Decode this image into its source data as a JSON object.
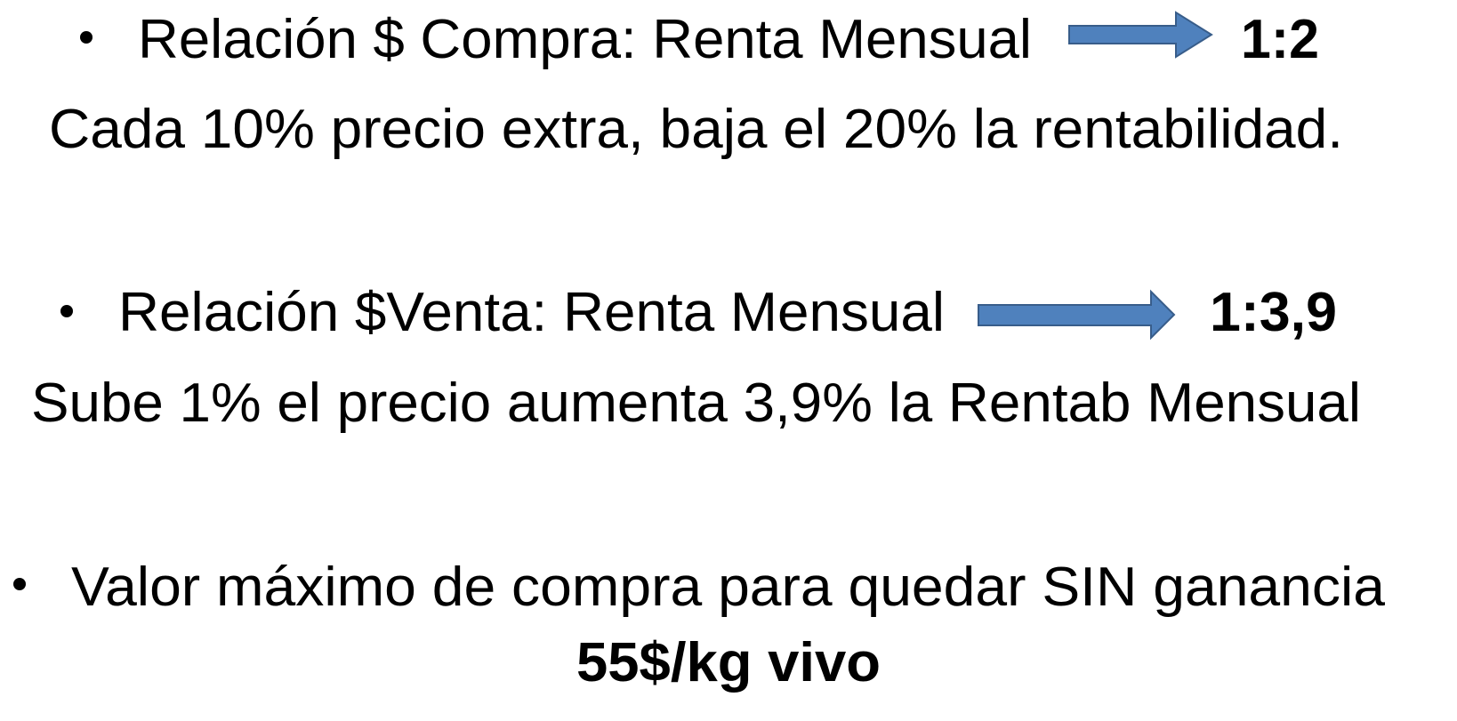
{
  "items": [
    {
      "text": "Relación $ Compra: Renta Mensual",
      "ratio": "1:2",
      "note": "Cada 10% precio extra, baja el 20% la rentabilidad."
    },
    {
      "text": "Relación $Venta: Renta Mensual",
      "ratio": "1:3,9",
      "note": "Sube 1% el precio aumenta 3,9% la Rentab Mensual"
    },
    {
      "text": "Valor máximo de compra para quedar SIN ganancia",
      "value": "55$/kg vivo"
    }
  ]
}
